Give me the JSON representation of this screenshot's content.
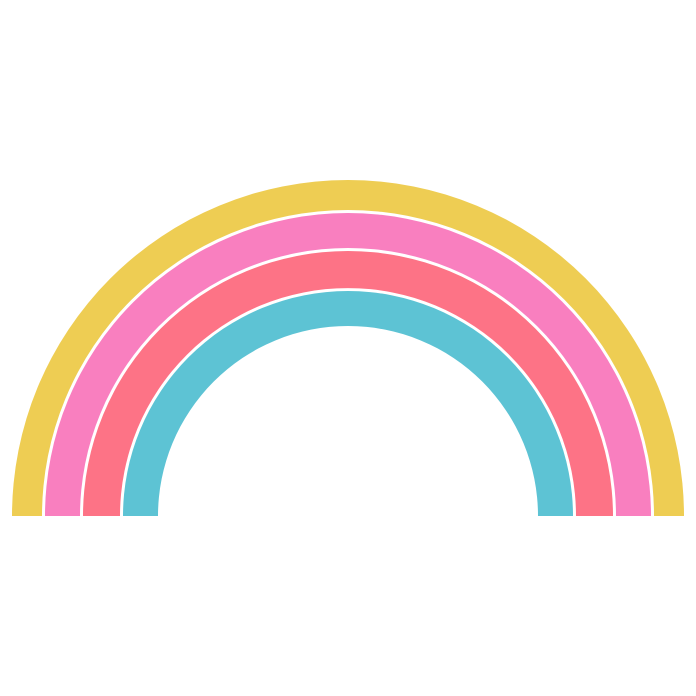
{
  "rainbow": {
    "bands": [
      {
        "name": "yellow-band",
        "color": "#EECD53"
      },
      {
        "name": "pink-band",
        "color": "#F97FBF"
      },
      {
        "name": "coral-band",
        "color": "#FD7386"
      },
      {
        "name": "blue-band",
        "color": "#5DC3D4"
      }
    ],
    "separator_color": "#FFFFFF",
    "background_color": "#FFFFFF"
  }
}
